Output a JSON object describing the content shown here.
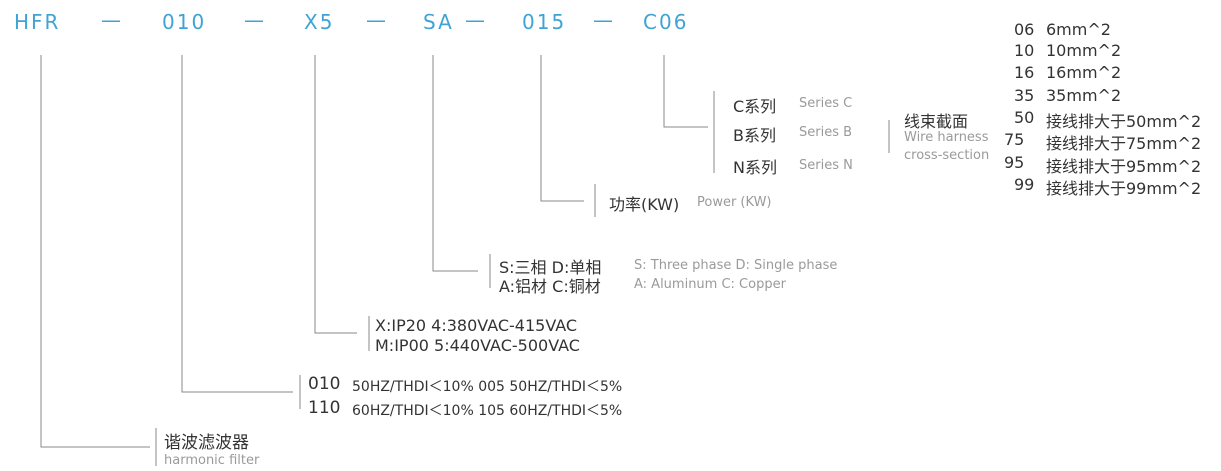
{
  "code": {
    "p1": "HFR",
    "p2": "010",
    "p3": "X5",
    "p4": "SA",
    "p5": "015",
    "p6": "C06",
    "dash": "—"
  },
  "series": {
    "c_cn": "C系列",
    "c_en": "Series C",
    "b_cn": "B系列",
    "b_en": "Series B",
    "n_cn": "N系列",
    "n_en": "Series N"
  },
  "section": {
    "cn": "线束截面",
    "en1": "Wire harness",
    "en2": "cross-section",
    "items": [
      {
        "code": "06",
        "desc": "6mm^2"
      },
      {
        "code": "10",
        "desc": "10mm^2"
      },
      {
        "code": "16",
        "desc": "16mm^2"
      },
      {
        "code": "35",
        "desc": "35mm^2"
      },
      {
        "code": "50",
        "desc": "接线排大于50mm^2"
      },
      {
        "code": "75",
        "desc": "接线排大于75mm^2"
      },
      {
        "code": "95",
        "desc": "接线排大于95mm^2"
      },
      {
        "code": "99",
        "desc": "接线排大于99mm^2"
      }
    ]
  },
  "power": {
    "cn": "功率(KW)",
    "en": "Power (KW)"
  },
  "phase": {
    "l1": "S:三相  D:单相",
    "l2": "A:铝材  C:铜材",
    "en1": "S: Three phase D: Single phase",
    "en2": "A: Aluminum C: Copper"
  },
  "ip": {
    "l1": "X:IP20    4:380VAC-415VAC",
    "l2": "M:IP00    5:440VAC-500VAC"
  },
  "thdi": {
    "c1": "010",
    "t1": "50HZ/THDI＜10%   005   50HZ/THDI＜5%",
    "c2": "110",
    "t2": "60HZ/THDI＜10%   105   60HZ/THDI＜5%"
  },
  "filter": {
    "cn": "谐波滤波器",
    "en": "harmonic filter"
  }
}
